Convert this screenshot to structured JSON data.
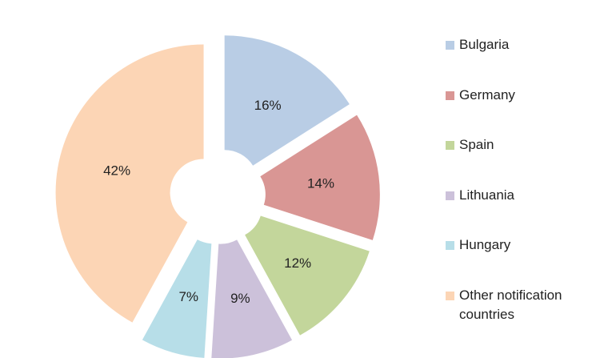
{
  "chart_data": {
    "type": "pie",
    "variant": "exploded-donut",
    "title": "",
    "categories": [
      "Bulgaria",
      "Germany",
      "Spain",
      "Lithuania",
      "Hungary",
      "Other notification countries"
    ],
    "legend_lines": [
      [
        "Bulgaria"
      ],
      [
        "Germany"
      ],
      [
        "Spain"
      ],
      [
        "Lithuania"
      ],
      [
        "Hungary"
      ],
      [
        "Other notification",
        "countries"
      ]
    ],
    "values": [
      16,
      14,
      12,
      9,
      7,
      42
    ],
    "labels": [
      "16%",
      "14%",
      "12%",
      "9%",
      "7%",
      "42%"
    ],
    "colors": [
      "#B9CDE5",
      "#D99694",
      "#C3D69B",
      "#CCC1DA",
      "#B7DEE8",
      "#FCD5B5"
    ],
    "legend_position": "right"
  }
}
